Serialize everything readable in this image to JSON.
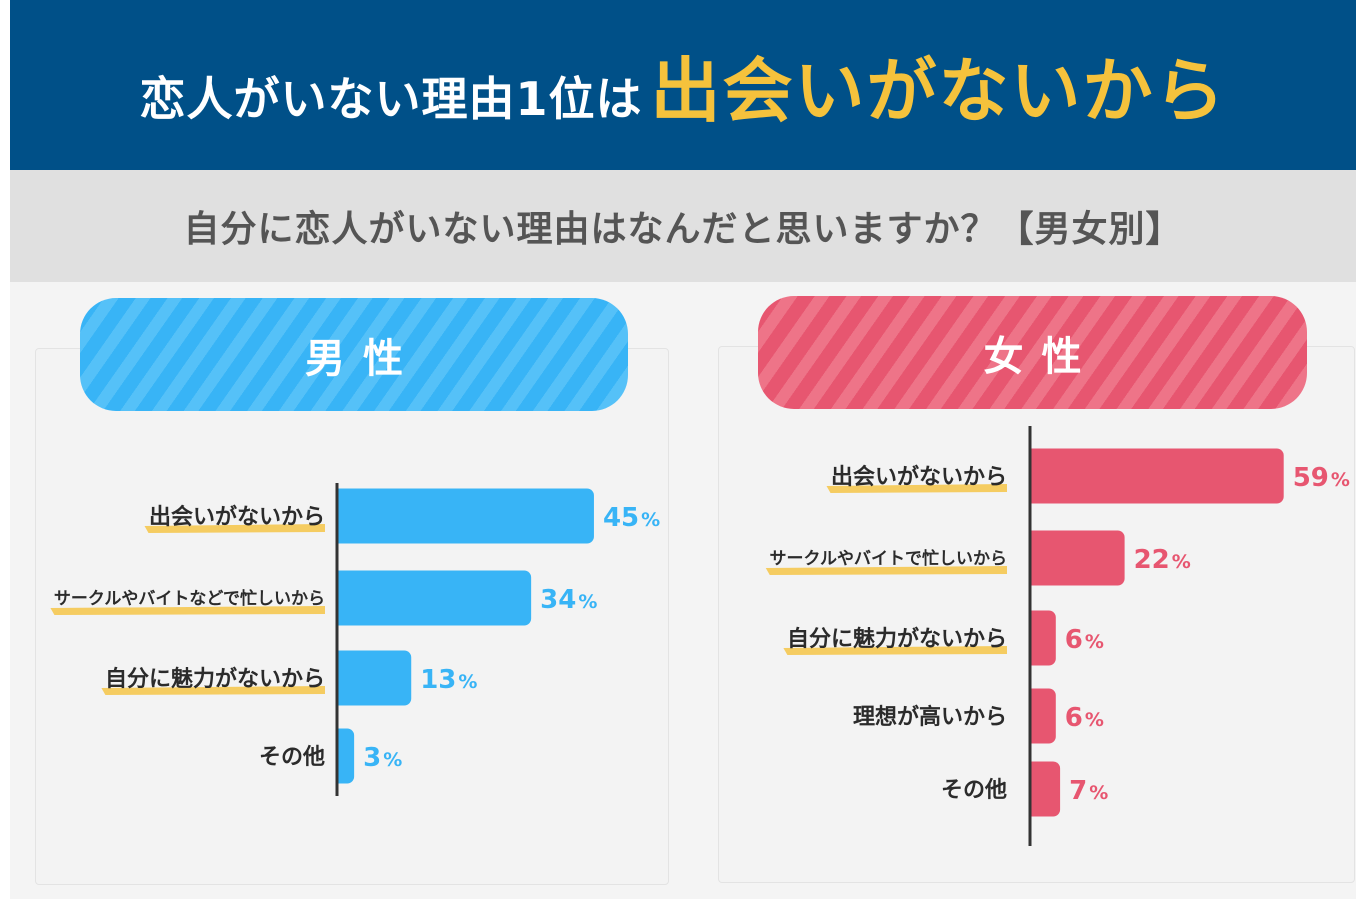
{
  "header": {
    "prefix": "恋人がいない理由1位は",
    "highlight": "出会いがないから"
  },
  "subheader": {
    "text": "自分に恋人がいない理由はなんだと思いますか？【男女別】"
  },
  "colors": {
    "header_bg": "#005088",
    "highlight": "#f5c23c",
    "male": "#38b4f6",
    "female": "#e75670",
    "underline": "#f5c23c"
  },
  "chart_data": [
    {
      "type": "bar",
      "orientation": "horizontal",
      "title": "男性",
      "color": "#38b4f6",
      "categories": [
        "出会いがないから",
        "サークルやバイトなどで忙しいから",
        "自分に魅力がないから",
        "その他"
      ],
      "values": [
        45,
        34,
        13,
        3
      ],
      "value_labels": [
        "45",
        "34",
        "13",
        "3"
      ],
      "unit": "%",
      "underlined": [
        true,
        true,
        true,
        false
      ],
      "xlim": [
        0,
        60
      ]
    },
    {
      "type": "bar",
      "orientation": "horizontal",
      "title": "女性",
      "color": "#e75670",
      "categories": [
        "出会いがないから",
        "サークルやバイトで忙しいから",
        "自分に魅力がないから",
        "理想が高いから",
        "その他"
      ],
      "values": [
        59,
        22,
        6,
        6,
        7
      ],
      "value_labels": [
        "59",
        "22",
        "6",
        "6",
        "7"
      ],
      "unit": "%",
      "underlined": [
        true,
        true,
        true,
        false,
        false
      ],
      "xlim": [
        0,
        60
      ]
    }
  ]
}
